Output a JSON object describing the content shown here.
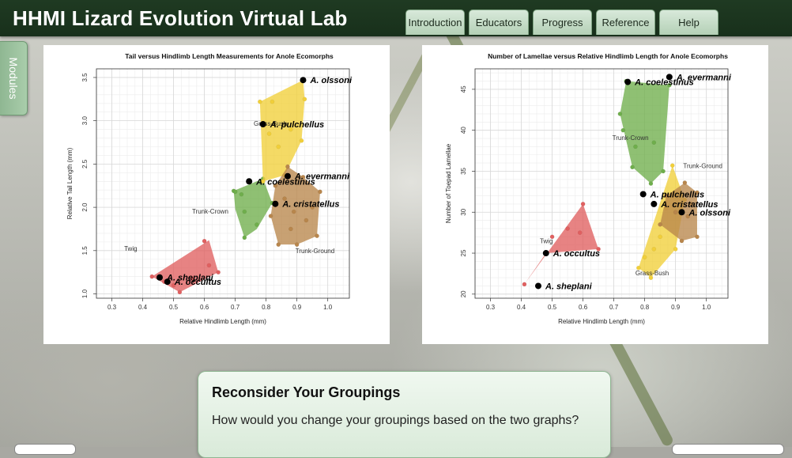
{
  "app": {
    "title": "HHMI Lizard Evolution Virtual Lab"
  },
  "nav": {
    "tabs": [
      {
        "label": "Introduction"
      },
      {
        "label": "Educators"
      },
      {
        "label": "Progress"
      },
      {
        "label": "Reference"
      },
      {
        "label": "Help"
      }
    ]
  },
  "sidebar": {
    "modules_label": "Modules"
  },
  "chart_data": [
    {
      "type": "scatter",
      "title": "Tail versus Hindlimb Length Measurements for Anole Ecomorphs",
      "xlabel": "Relative Hindlimb Length (mm)",
      "ylabel": "Relative Tail Length (mm)",
      "xlim": [
        0.25,
        1.07
      ],
      "ylim": [
        0.95,
        3.6
      ],
      "xticks": [
        "0.3",
        "0.4",
        "0.5",
        "0.6",
        "0.7",
        "0.8",
        "0.9",
        "1.0"
      ],
      "yticks": [
        "1.0",
        "1.5",
        "2.0",
        "2.5",
        "3.0",
        "3.5"
      ],
      "grid": true,
      "groups": [
        {
          "name": "Twig",
          "color": "#e06060",
          "label_pos": [
            0.34,
            1.5
          ],
          "hull": [
            [
              0.43,
              1.2
            ],
            [
              0.615,
              1.62
            ],
            [
              0.645,
              1.25
            ],
            [
              0.52,
              1.02
            ]
          ],
          "points": [
            [
              0.43,
              1.2
            ],
            [
              0.47,
              1.14
            ],
            [
              0.5,
              1.1
            ],
            [
              0.52,
              1.02
            ],
            [
              0.6,
              1.61
            ],
            [
              0.615,
              1.33
            ],
            [
              0.645,
              1.25
            ],
            [
              0.56,
              1.18
            ]
          ]
        },
        {
          "name": "Trunk-Crown",
          "color": "#6fae4c",
          "label_pos": [
            0.56,
            1.93
          ],
          "hull": [
            [
              0.695,
              2.19
            ],
            [
              0.79,
              2.33
            ],
            [
              0.82,
              2.05
            ],
            [
              0.77,
              1.75
            ],
            [
              0.73,
              1.65
            ],
            [
              0.7,
              1.98
            ]
          ],
          "points": [
            [
              0.695,
              2.19
            ],
            [
              0.72,
              2.15
            ],
            [
              0.79,
              2.33
            ],
            [
              0.82,
              2.05
            ],
            [
              0.77,
              1.8
            ],
            [
              0.73,
              1.65
            ],
            [
              0.7,
              2.18
            ],
            [
              0.73,
              1.95
            ]
          ]
        },
        {
          "name": "Grass-Bush",
          "color": "#f1cf3a",
          "label_pos": [
            0.76,
            2.94
          ],
          "hull": [
            [
              0.78,
              3.22
            ],
            [
              0.92,
              3.47
            ],
            [
              0.925,
              3.25
            ],
            [
              0.915,
              2.77
            ],
            [
              0.86,
              2.37
            ],
            [
              0.79,
              2.3
            ]
          ],
          "points": [
            [
              0.78,
              3.22
            ],
            [
              0.82,
              3.22
            ],
            [
              0.92,
              3.47
            ],
            [
              0.925,
              3.25
            ],
            [
              0.915,
              2.77
            ],
            [
              0.86,
              2.37
            ],
            [
              0.79,
              2.3
            ],
            [
              0.84,
              2.7
            ],
            [
              0.88,
              2.9
            ],
            [
              0.81,
              2.85
            ]
          ]
        },
        {
          "name": "Trunk-Ground",
          "color": "#b8864c",
          "label_pos": [
            0.895,
            1.47
          ],
          "hull": [
            [
              0.87,
              2.47
            ],
            [
              0.92,
              2.35
            ],
            [
              0.975,
              2.18
            ],
            [
              0.965,
              1.67
            ],
            [
              0.9,
              1.57
            ],
            [
              0.84,
              1.57
            ],
            [
              0.815,
              1.9
            ],
            [
              0.83,
              2.25
            ]
          ],
          "points": [
            [
              0.87,
              2.47
            ],
            [
              0.92,
              2.35
            ],
            [
              0.975,
              2.18
            ],
            [
              0.965,
              1.67
            ],
            [
              0.9,
              1.57
            ],
            [
              0.84,
              1.57
            ],
            [
              0.815,
              1.9
            ],
            [
              0.83,
              2.25
            ],
            [
              0.86,
              2.1
            ],
            [
              0.89,
              1.95
            ],
            [
              0.93,
              1.85
            ],
            [
              0.95,
              2.0
            ],
            [
              0.88,
              1.75
            ]
          ]
        }
      ],
      "species": [
        {
          "name": "A. olssoni",
          "x": 0.92,
          "y": 3.47
        },
        {
          "name": "A. pulchellus",
          "x": 0.79,
          "y": 2.96
        },
        {
          "name": "A. coelestinus",
          "x": 0.745,
          "y": 2.3
        },
        {
          "name": "A. evermanni",
          "x": 0.87,
          "y": 2.36
        },
        {
          "name": "A. cristatellus",
          "x": 0.83,
          "y": 2.04
        },
        {
          "name": "A. sheplani",
          "x": 0.455,
          "y": 1.19
        },
        {
          "name": "A. occultus",
          "x": 0.48,
          "y": 1.14
        }
      ]
    },
    {
      "type": "scatter",
      "title": "Number of Lamellae versus Relative Hindlimb Length for Anole Ecomorphs",
      "xlabel": "Relative Hindlimb Length (mm)",
      "ylabel": "Number of Toepad Lamellae",
      "xlim": [
        0.25,
        1.07
      ],
      "ylim": [
        19.5,
        47.5
      ],
      "xticks": [
        "0.3",
        "0.4",
        "0.5",
        "0.6",
        "0.7",
        "0.8",
        "0.9",
        "1.0"
      ],
      "yticks": [
        "20",
        "25",
        "30",
        "35",
        "40",
        "45"
      ],
      "grid": true,
      "groups": [
        {
          "name": "Twig",
          "color": "#e06060",
          "label_pos": [
            0.46,
            26.2
          ],
          "hull": [
            [
              0.41,
              21.2
            ],
            [
              0.6,
              31.0
            ],
            [
              0.65,
              25.5
            ],
            [
              0.48,
              25.0
            ]
          ],
          "points": [
            [
              0.41,
              21.2
            ],
            [
              0.6,
              31.0
            ],
            [
              0.65,
              25.5
            ],
            [
              0.48,
              25.0
            ],
            [
              0.55,
              28.0
            ],
            [
              0.59,
              27.5
            ],
            [
              0.5,
              27.0
            ]
          ]
        },
        {
          "name": "Trunk-Crown",
          "color": "#6fae4c",
          "label_pos": [
            0.695,
            38.8
          ],
          "hull": [
            [
              0.74,
              46.0
            ],
            [
              0.88,
              45.5
            ],
            [
              0.86,
              35.0
            ],
            [
              0.82,
              33.5
            ],
            [
              0.76,
              35.5
            ],
            [
              0.72,
              42.0
            ]
          ],
          "points": [
            [
              0.74,
              46.0
            ],
            [
              0.88,
              45.5
            ],
            [
              0.86,
              35.0
            ],
            [
              0.82,
              33.5
            ],
            [
              0.76,
              35.5
            ],
            [
              0.72,
              42.0
            ],
            [
              0.73,
              40.0
            ],
            [
              0.77,
              38.0
            ],
            [
              0.83,
              38.5
            ]
          ]
        },
        {
          "name": "Grass-Bush",
          "color": "#f1cf3a",
          "label_pos": [
            0.77,
            22.3
          ],
          "hull": [
            [
              0.78,
              23.2
            ],
            [
              0.89,
              35.7
            ],
            [
              0.93,
              31.5
            ],
            [
              0.9,
              25.5
            ],
            [
              0.82,
              22.0
            ]
          ],
          "points": [
            [
              0.78,
              23.2
            ],
            [
              0.89,
              35.7
            ],
            [
              0.93,
              31.5
            ],
            [
              0.9,
              25.5
            ],
            [
              0.82,
              22.0
            ],
            [
              0.85,
              27.0
            ],
            [
              0.87,
              30.5
            ],
            [
              0.83,
              25.5
            ],
            [
              0.8,
              24.5
            ]
          ]
        },
        {
          "name": "Trunk-Ground",
          "color": "#b8864c",
          "label_pos": [
            0.925,
            35.4
          ],
          "hull": [
            [
              0.87,
              32.0
            ],
            [
              0.93,
              33.6
            ],
            [
              0.97,
              32.4
            ],
            [
              0.97,
              27.0
            ],
            [
              0.92,
              26.5
            ],
            [
              0.85,
              28.5
            ]
          ],
          "points": [
            [
              0.87,
              32.0
            ],
            [
              0.93,
              33.6
            ],
            [
              0.97,
              32.4
            ],
            [
              0.97,
              27.0
            ],
            [
              0.92,
              26.5
            ],
            [
              0.85,
              28.5
            ],
            [
              0.9,
              30.0
            ],
            [
              0.94,
              29.5
            ],
            [
              0.95,
              31.0
            ]
          ]
        }
      ],
      "species": [
        {
          "name": "A. coelestinus",
          "x": 0.745,
          "y": 45.9
        },
        {
          "name": "A. evermanni",
          "x": 0.88,
          "y": 46.5
        },
        {
          "name": "A. pulchellus",
          "x": 0.795,
          "y": 32.2
        },
        {
          "name": "A. cristatellus",
          "x": 0.83,
          "y": 31.0
        },
        {
          "name": "A. olssoni",
          "x": 0.92,
          "y": 30.0
        },
        {
          "name": "A. occultus",
          "x": 0.48,
          "y": 25.0
        },
        {
          "name": "A. sheplani",
          "x": 0.455,
          "y": 21.0
        }
      ]
    }
  ],
  "dialog": {
    "heading": "Reconsider Your Groupings",
    "body": "How would you change your groupings based on the two graphs?"
  }
}
